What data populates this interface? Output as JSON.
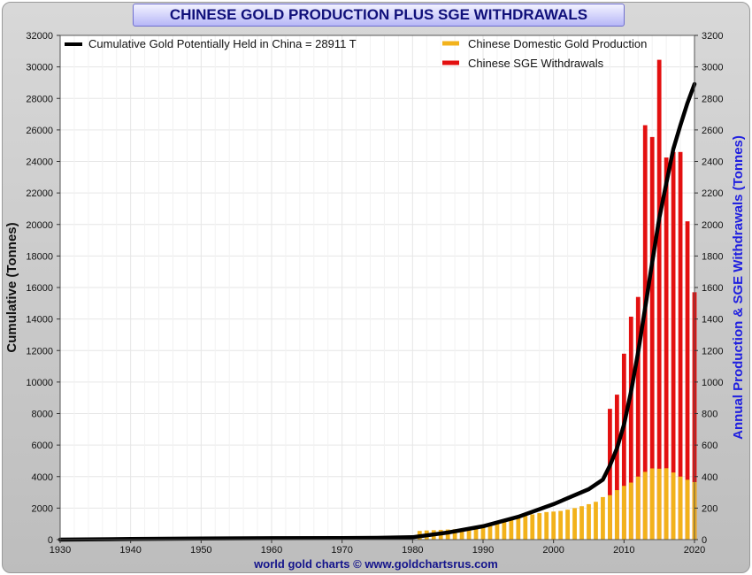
{
  "title": "CHINESE GOLD PRODUCTION PLUS SGE WITHDRAWALS",
  "footer": "world gold charts © www.goldchartsrus.com",
  "colors": {
    "production": "#f2b21b",
    "sge": "#e31010",
    "cumulative": "#000000",
    "right_axis_label": "#1f1fe0",
    "title_text": "#10107a"
  },
  "chart_data": {
    "type": "bar",
    "ylabel_left": "Cumulative (Tonnes)",
    "ylabel_right": "Annual Production & SGE Withdrawals (Tonnes)",
    "xlim": [
      1930,
      2020
    ],
    "ylim_left": [
      0,
      32000
    ],
    "ylim_right": [
      0,
      3200
    ],
    "x_ticks": [
      1930,
      1940,
      1950,
      1960,
      1970,
      1980,
      1990,
      2000,
      2010,
      2020
    ],
    "y_ticks_left": [
      0,
      2000,
      4000,
      6000,
      8000,
      10000,
      12000,
      14000,
      16000,
      18000,
      20000,
      22000,
      24000,
      26000,
      28000,
      30000,
      32000
    ],
    "y_ticks_right": [
      0,
      200,
      400,
      600,
      800,
      1000,
      1200,
      1400,
      1600,
      1800,
      2000,
      2200,
      2400,
      2600,
      2800,
      3000,
      3200
    ],
    "grid": true,
    "legend": [
      {
        "name": "Cumulative Gold Potentially Held in China  = 28911 T",
        "color": "#000000",
        "key": "cumulative"
      },
      {
        "name": "Chinese Domestic Gold Production",
        "color": "#f2b21b",
        "key": "production"
      },
      {
        "name": "Chinese SGE Withdrawals",
        "color": "#e31010",
        "key": "sge"
      }
    ],
    "production": {
      "years": [
        1981,
        1982,
        1983,
        1984,
        1985,
        1986,
        1987,
        1988,
        1989,
        1990,
        1991,
        1992,
        1993,
        1994,
        1995,
        1996,
        1997,
        1998,
        1999,
        2000,
        2001,
        2002,
        2003,
        2004,
        2005,
        2006,
        2007,
        2008,
        2009,
        2010,
        2011,
        2012,
        2013,
        2014,
        2015,
        2016,
        2017,
        2018,
        2019,
        2020
      ],
      "values": [
        55,
        58,
        60,
        62,
        64,
        66,
        70,
        75,
        82,
        90,
        100,
        110,
        120,
        130,
        140,
        150,
        160,
        168,
        175,
        178,
        182,
        190,
        200,
        212,
        225,
        240,
        270,
        282,
        314,
        341,
        362,
        400,
        430,
        452,
        450,
        453,
        426,
        400,
        380,
        365
      ]
    },
    "sge_withdrawals": {
      "years": [
        2008,
        2009,
        2010,
        2011,
        2012,
        2013,
        2014,
        2015,
        2016,
        2017,
        2018,
        2019,
        2020
      ],
      "values": [
        830,
        920,
        1180,
        1415,
        1540,
        2630,
        2555,
        3045,
        2425,
        2460,
        2460,
        2020,
        1570
      ]
    },
    "cumulative": {
      "years": [
        1930,
        1940,
        1950,
        1960,
        1970,
        1975,
        1980,
        1985,
        1990,
        1995,
        2000,
        2005,
        2007,
        2008,
        2009,
        2010,
        2011,
        2012,
        2013,
        2014,
        2015,
        2016,
        2017,
        2018,
        2019,
        2020
      ],
      "values": [
        0,
        40,
        70,
        90,
        100,
        110,
        150,
        450,
        850,
        1450,
        2250,
        3200,
        3800,
        4700,
        5800,
        7300,
        9400,
        11900,
        14700,
        17600,
        20400,
        22600,
        24800,
        26300,
        27700,
        28911
      ]
    }
  }
}
